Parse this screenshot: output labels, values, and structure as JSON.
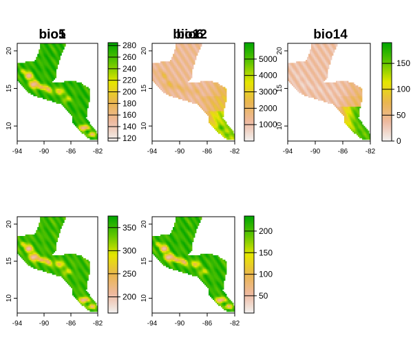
{
  "chart_data": [
    {
      "type": "heatmap",
      "title": "bio1",
      "xlim": [
        -94,
        -82
      ],
      "ylim": [
        8,
        21
      ],
      "x_ticks": [
        "-94",
        "-90",
        "-86",
        "-82"
      ],
      "y_ticks": [
        "10",
        "15",
        "20"
      ],
      "color_range": [
        115,
        285
      ],
      "colorbar_ticks": [
        120,
        140,
        160,
        180,
        200,
        220,
        240,
        260,
        280
      ],
      "grid": false
    },
    {
      "type": "heatmap",
      "title": "bio12",
      "xlim": [
        -94,
        -82
      ],
      "ylim": [
        8,
        21
      ],
      "x_ticks": [
        "-94",
        "-90",
        "-86",
        "-82"
      ],
      "y_ticks": [
        "10",
        "15",
        "20"
      ],
      "color_range": [
        0,
        6000
      ],
      "colorbar_ticks": [
        1000,
        2000,
        3000,
        4000,
        5000
      ],
      "grid": false
    },
    {
      "type": "heatmap",
      "title": "bio14",
      "xlim": [
        -94,
        -82
      ],
      "ylim": [
        8,
        21
      ],
      "x_ticks": [
        "-94",
        "-90",
        "-86",
        "-82"
      ],
      "y_ticks": [
        "10",
        "15",
        "20"
      ],
      "color_range": [
        0,
        190
      ],
      "colorbar_ticks": [
        0,
        50,
        100,
        150
      ],
      "grid": false
    },
    {
      "type": "heatmap",
      "title": "bio5",
      "xlim": [
        -94,
        -82
      ],
      "ylim": [
        8,
        21
      ],
      "x_ticks": [
        "-94",
        "-90",
        "-86",
        "-82"
      ],
      "y_ticks": [
        "10",
        "15",
        "20"
      ],
      "color_range": [
        165,
        375
      ],
      "colorbar_ticks": [
        200,
        250,
        300,
        350
      ],
      "grid": false
    },
    {
      "type": "heatmap",
      "title": "bio6",
      "xlim": [
        -94,
        -82
      ],
      "ylim": [
        8,
        21
      ],
      "x_ticks": [
        "-94",
        "-90",
        "-86",
        "-82"
      ],
      "y_ticks": [
        "10",
        "15",
        "20"
      ],
      "color_range": [
        10,
        235
      ],
      "colorbar_ticks": [
        50,
        100,
        150,
        200
      ],
      "grid": false
    }
  ],
  "palette": [
    "#f2f2f2",
    "#eeb99f",
    "#eab64e",
    "#e6e600",
    "#63c600",
    "#00a600"
  ]
}
